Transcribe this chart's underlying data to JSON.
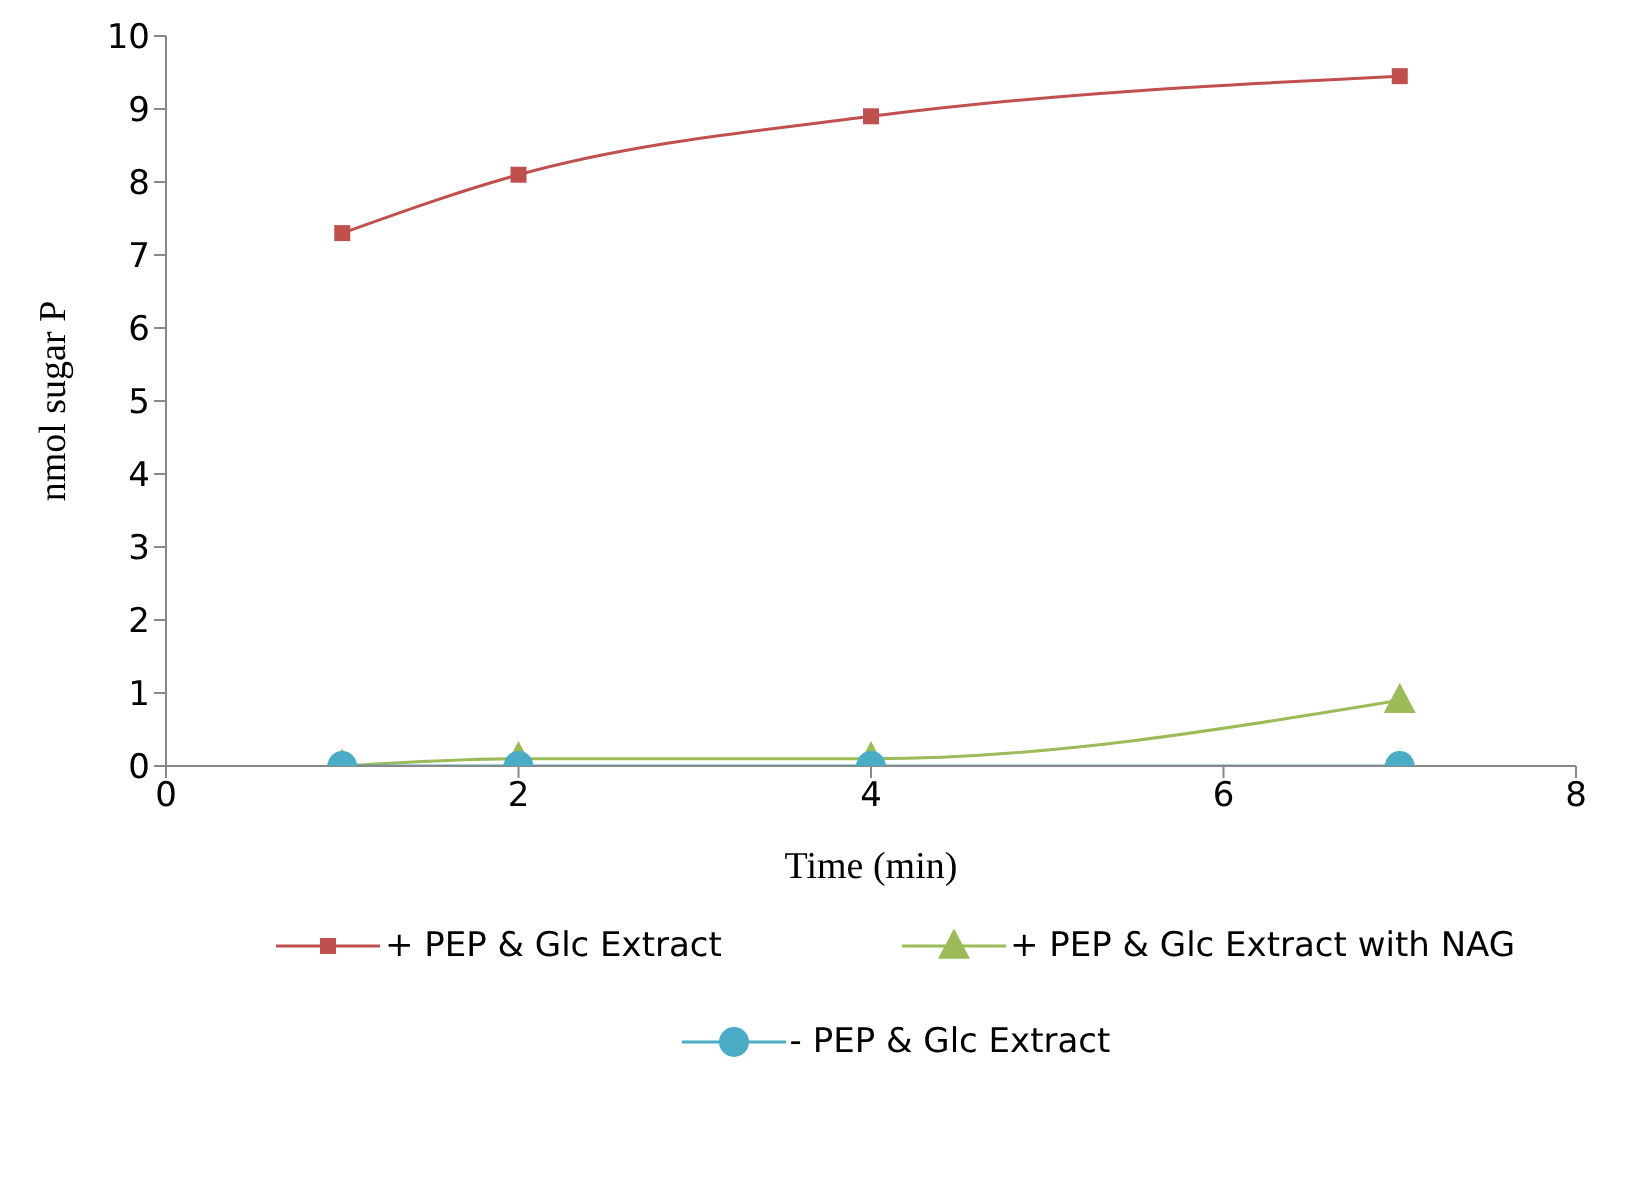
{
  "chart_data": {
    "type": "line",
    "xlabel": "Time (min)",
    "ylabel": "nmol sugar P",
    "x": [
      1,
      2,
      4,
      7
    ],
    "series": [
      {
        "name": "+ PEP & Glc Extract",
        "color": "#c0504d",
        "marker": "square",
        "values": [
          7.3,
          8.1,
          8.9,
          9.45
        ]
      },
      {
        "name": "+ PEP & Glc Extract with NAG",
        "color": "#9bbb59",
        "marker": "triangle",
        "values": [
          0,
          0.1,
          0.1,
          0.9
        ]
      },
      {
        "name": "- PEP & Glc Extract",
        "color": "#4bacc6",
        "marker": "circle",
        "values": [
          0,
          0,
          0,
          0
        ]
      }
    ],
    "xlim": [
      0,
      8
    ],
    "xticks": [
      0,
      2,
      4,
      6,
      8
    ],
    "ylim": [
      0,
      10
    ],
    "yticks": [
      0,
      1,
      2,
      3,
      4,
      5,
      6,
      7,
      8,
      9,
      10
    ],
    "legend": "bottom"
  }
}
